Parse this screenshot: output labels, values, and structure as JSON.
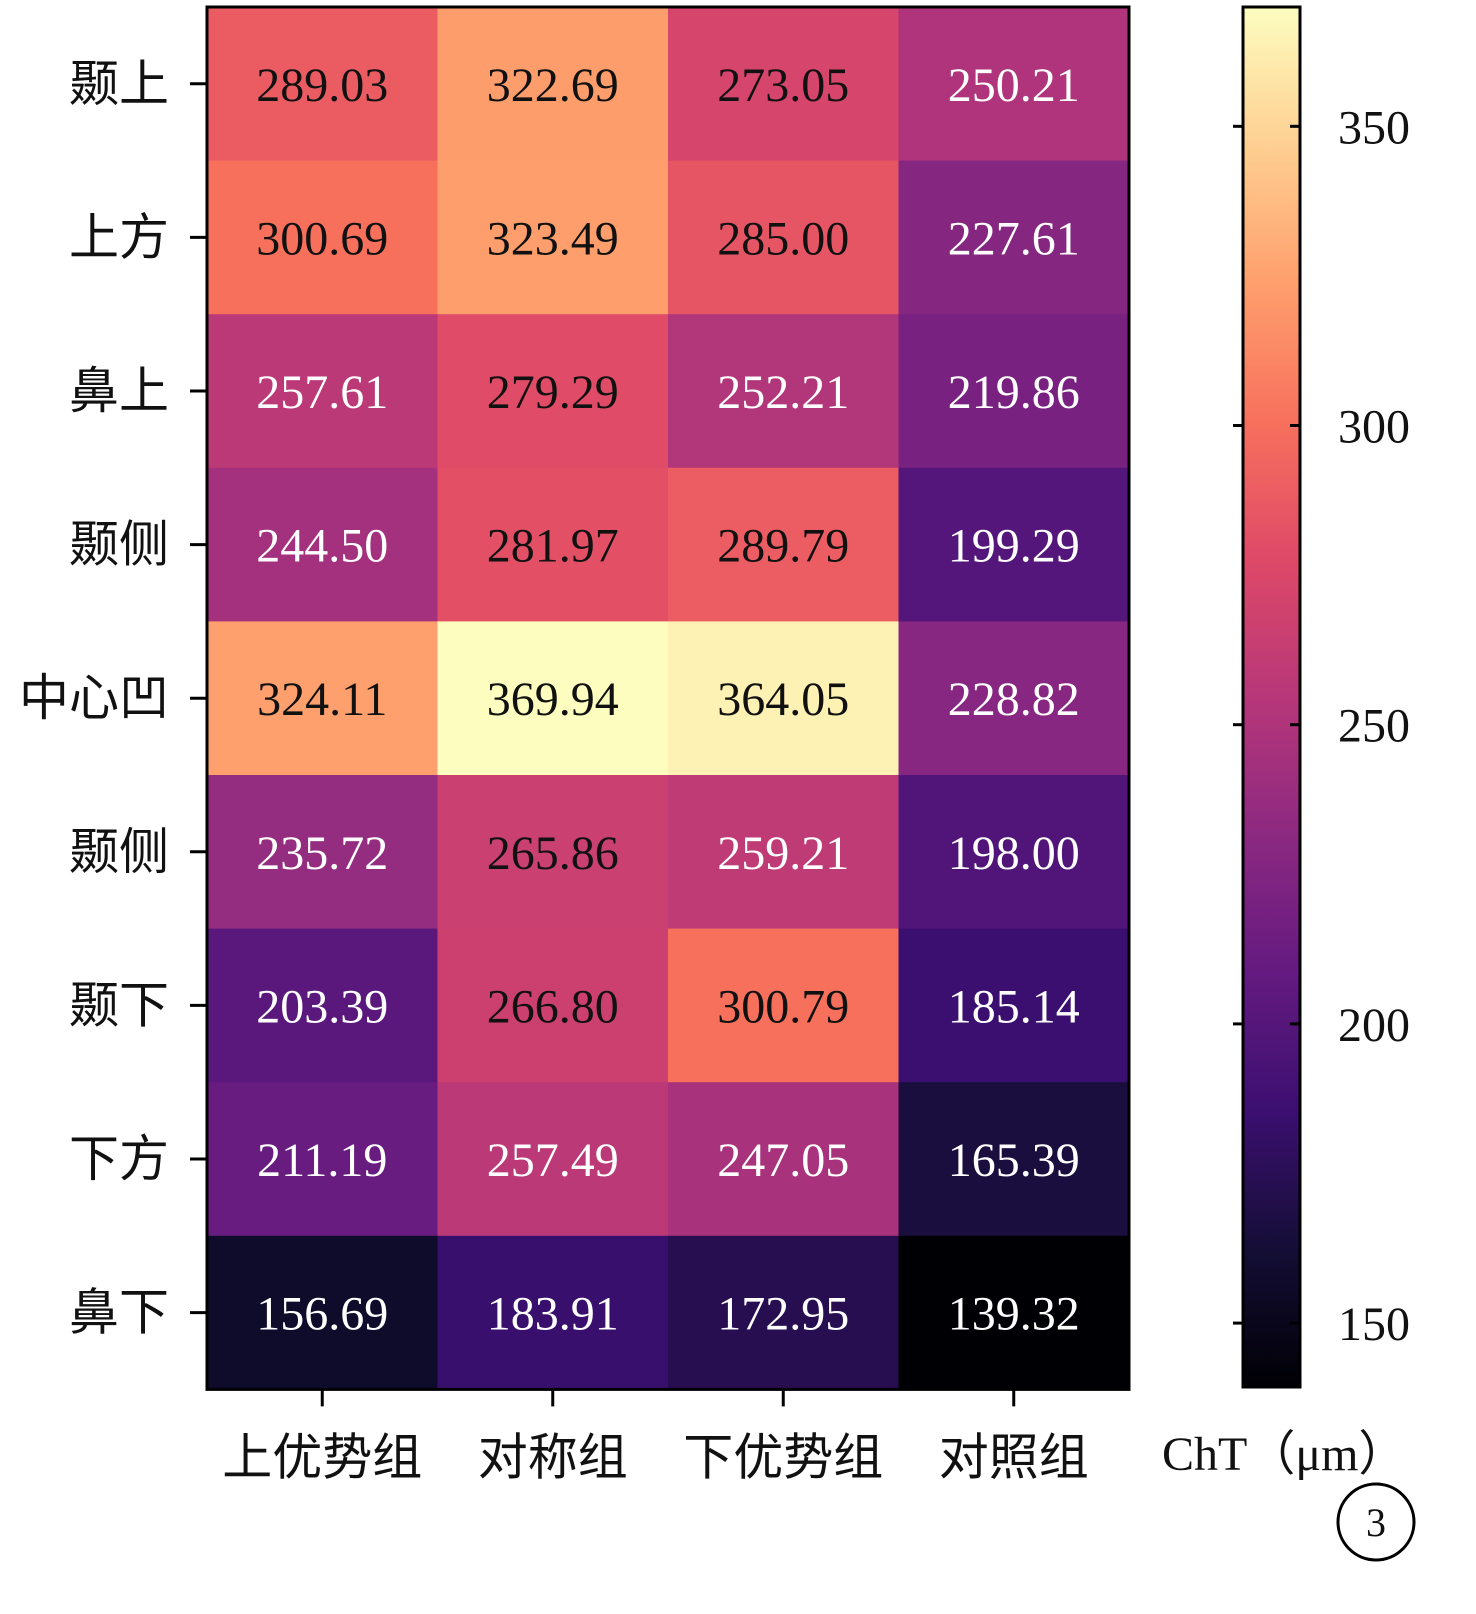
{
  "chart_data": {
    "type": "heatmap",
    "title": "",
    "rows": [
      "颞上",
      "上方",
      "鼻上",
      "颞侧",
      "中心凹",
      "颞侧",
      "颞下",
      "下方",
      "鼻下"
    ],
    "columns": [
      "上优势组",
      "对称组",
      "下优势组",
      "对照组"
    ],
    "values": [
      [
        289.03,
        322.69,
        273.05,
        250.21
      ],
      [
        300.69,
        323.49,
        285.0,
        227.61
      ],
      [
        257.61,
        279.29,
        252.21,
        219.86
      ],
      [
        244.5,
        281.97,
        289.79,
        199.29
      ],
      [
        324.11,
        369.94,
        364.05,
        228.82
      ],
      [
        235.72,
        265.86,
        259.21,
        198.0
      ],
      [
        203.39,
        266.8,
        300.79,
        185.14
      ],
      [
        211.19,
        257.49,
        247.05,
        165.39
      ],
      [
        156.69,
        183.91,
        172.95,
        139.32
      ]
    ],
    "colorbar": {
      "label": "ChT（μm）",
      "ticks": [
        150,
        200,
        250,
        300,
        350
      ],
      "range": [
        139.32,
        369.94
      ],
      "colormap": "magma"
    },
    "panel_label": "3"
  }
}
